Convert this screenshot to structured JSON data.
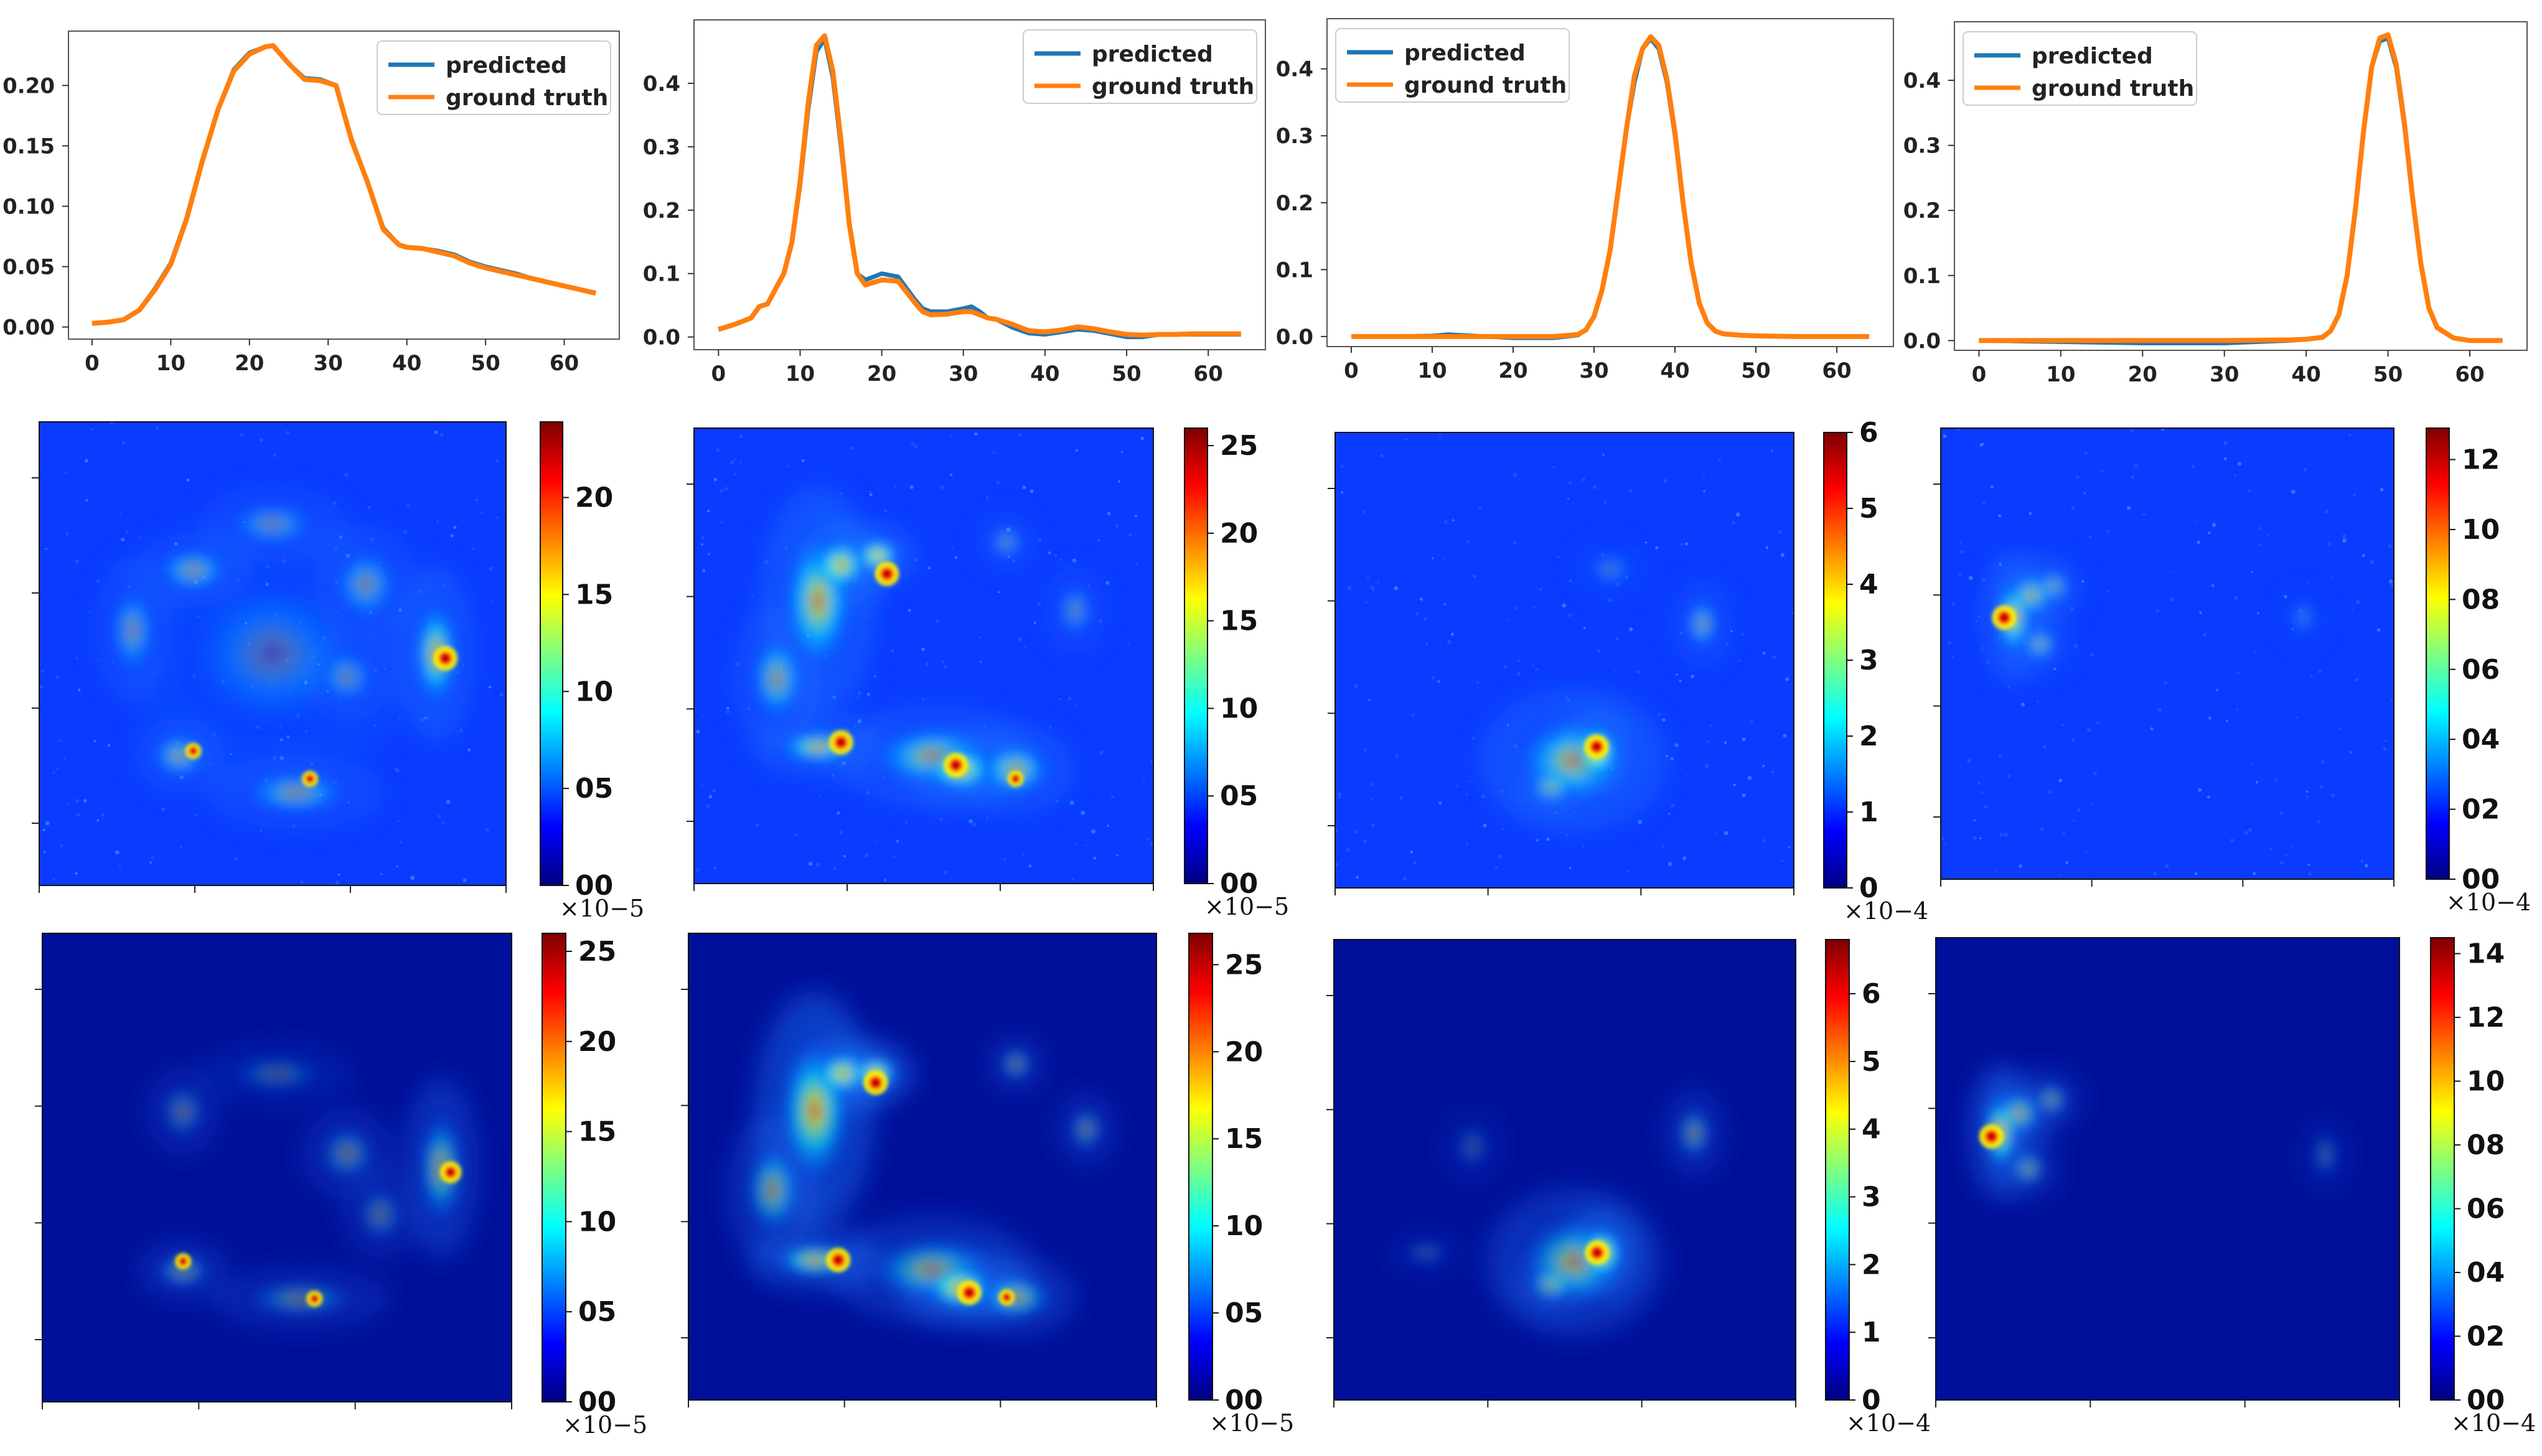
{
  "colors": {
    "predicted": "#1f77b4",
    "ground_truth": "#ff7f0e",
    "jet": [
      "#00007f",
      "#0000ff",
      "#007fff",
      "#00ffff",
      "#7fff7f",
      "#ffff00",
      "#ff7f00",
      "#ff0000",
      "#7f0000"
    ]
  },
  "chart_data": [
    {
      "type": "line",
      "x_ticks": [
        "0",
        "10",
        "20",
        "30",
        "40",
        "50",
        "60"
      ],
      "y_ticks": [
        "0.00",
        "0.05",
        "0.10",
        "0.15",
        "0.20"
      ],
      "xlim": [
        -3,
        67
      ],
      "ylim": [
        -0.01,
        0.245
      ],
      "legend": [
        "predicted",
        "ground truth"
      ],
      "legend_position": "top-right",
      "series": [
        {
          "name": "predicted",
          "x": [
            0,
            2,
            4,
            6,
            8,
            10,
            12,
            14,
            16,
            18,
            20,
            22,
            23,
            25,
            27,
            29,
            31,
            33,
            35,
            37,
            39,
            40,
            42,
            44,
            46,
            48,
            50,
            52,
            54,
            56,
            58,
            60,
            62,
            64
          ],
          "y": [
            0.003,
            0.004,
            0.006,
            0.014,
            0.032,
            0.053,
            0.09,
            0.138,
            0.18,
            0.213,
            0.227,
            0.232,
            0.233,
            0.218,
            0.206,
            0.205,
            0.2,
            0.155,
            0.12,
            0.082,
            0.068,
            0.066,
            0.065,
            0.063,
            0.06,
            0.054,
            0.05,
            0.047,
            0.044,
            0.04,
            0.037,
            0.034,
            0.031,
            0.028
          ]
        },
        {
          "name": "ground truth",
          "x": [
            0,
            2,
            4,
            6,
            8,
            10,
            12,
            14,
            16,
            18,
            20,
            22,
            23,
            25,
            27,
            29,
            31,
            33,
            35,
            37,
            39,
            40,
            42,
            44,
            46,
            48,
            50,
            52,
            54,
            56,
            58,
            60,
            62,
            64
          ],
          "y": [
            0.003,
            0.004,
            0.006,
            0.014,
            0.031,
            0.052,
            0.089,
            0.137,
            0.18,
            0.212,
            0.226,
            0.232,
            0.233,
            0.218,
            0.205,
            0.204,
            0.2,
            0.154,
            0.12,
            0.081,
            0.068,
            0.066,
            0.065,
            0.062,
            0.059,
            0.053,
            0.049,
            0.046,
            0.043,
            0.04,
            0.037,
            0.034,
            0.031,
            0.028
          ]
        }
      ]
    },
    {
      "type": "line",
      "x_ticks": [
        "0",
        "10",
        "20",
        "30",
        "40",
        "50",
        "60"
      ],
      "y_ticks": [
        "0.0",
        "0.1",
        "0.2",
        "0.3",
        "0.4"
      ],
      "xlim": [
        -3,
        67
      ],
      "ylim": [
        -0.02,
        0.5
      ],
      "legend": [
        "predicted",
        "ground truth"
      ],
      "legend_position": "top-right",
      "series": [
        {
          "name": "predicted",
          "x": [
            0,
            2,
            4,
            5,
            6,
            8,
            9,
            10,
            11,
            12,
            13,
            14,
            15,
            16,
            17,
            18,
            20,
            22,
            24,
            25,
            26,
            28,
            30,
            31,
            32,
            33,
            34,
            36,
            38,
            40,
            42,
            44,
            46,
            48,
            50,
            52,
            54,
            56,
            58,
            60,
            62,
            64
          ],
          "y": [
            0.012,
            0.02,
            0.03,
            0.048,
            0.052,
            0.1,
            0.15,
            0.24,
            0.36,
            0.45,
            0.47,
            0.41,
            0.3,
            0.18,
            0.1,
            0.09,
            0.1,
            0.095,
            0.06,
            0.045,
            0.04,
            0.04,
            0.045,
            0.048,
            0.04,
            0.03,
            0.028,
            0.015,
            0.006,
            0.004,
            0.008,
            0.012,
            0.01,
            0.005,
            0.0,
            0.0,
            0.004,
            0.004,
            0.004,
            0.004,
            0.004,
            0.004
          ]
        },
        {
          "name": "ground truth",
          "x": [
            0,
            2,
            4,
            5,
            6,
            8,
            9,
            10,
            11,
            12,
            13,
            14,
            15,
            16,
            17,
            18,
            20,
            22,
            24,
            25,
            26,
            28,
            30,
            31,
            32,
            33,
            34,
            36,
            38,
            40,
            42,
            44,
            46,
            48,
            50,
            52,
            54,
            56,
            58,
            60,
            62,
            64
          ],
          "y": [
            0.012,
            0.02,
            0.03,
            0.048,
            0.052,
            0.1,
            0.15,
            0.245,
            0.37,
            0.46,
            0.475,
            0.42,
            0.31,
            0.18,
            0.1,
            0.082,
            0.09,
            0.088,
            0.055,
            0.04,
            0.035,
            0.036,
            0.04,
            0.04,
            0.035,
            0.03,
            0.028,
            0.02,
            0.01,
            0.008,
            0.011,
            0.016,
            0.013,
            0.008,
            0.004,
            0.003,
            0.004,
            0.004,
            0.005,
            0.005,
            0.005,
            0.005
          ]
        }
      ]
    },
    {
      "type": "line",
      "x_ticks": [
        "0",
        "10",
        "20",
        "30",
        "40",
        "50",
        "60"
      ],
      "y_ticks": [
        "0.0",
        "0.1",
        "0.2",
        "0.3",
        "0.4"
      ],
      "xlim": [
        -3,
        67
      ],
      "ylim": [
        -0.015,
        0.475
      ],
      "legend": [
        "predicted",
        "ground truth"
      ],
      "legend_position": "top-left",
      "series": [
        {
          "name": "predicted",
          "x": [
            0,
            5,
            10,
            12,
            15,
            20,
            25,
            28,
            29,
            30,
            31,
            32,
            33,
            34,
            35,
            36,
            37,
            38,
            39,
            40,
            41,
            42,
            43,
            44,
            45,
            46,
            48,
            50,
            55,
            60,
            64
          ],
          "y": [
            0.0,
            0.0,
            0.001,
            0.003,
            0.001,
            -0.002,
            -0.002,
            0.002,
            0.01,
            0.03,
            0.07,
            0.13,
            0.22,
            0.31,
            0.38,
            0.43,
            0.445,
            0.43,
            0.38,
            0.3,
            0.2,
            0.11,
            0.05,
            0.02,
            0.008,
            0.004,
            0.002,
            0.001,
            0.0,
            0.0,
            0.0
          ]
        },
        {
          "name": "ground truth",
          "x": [
            0,
            5,
            10,
            12,
            15,
            20,
            25,
            28,
            29,
            30,
            31,
            32,
            33,
            34,
            35,
            36,
            37,
            38,
            39,
            40,
            41,
            42,
            43,
            44,
            45,
            46,
            48,
            50,
            55,
            60,
            64
          ],
          "y": [
            0.0,
            0.0,
            0.0,
            0.0,
            0.0,
            0.0,
            0.0,
            0.003,
            0.01,
            0.03,
            0.07,
            0.13,
            0.22,
            0.31,
            0.39,
            0.43,
            0.448,
            0.435,
            0.385,
            0.305,
            0.2,
            0.11,
            0.05,
            0.02,
            0.008,
            0.004,
            0.002,
            0.001,
            0.0,
            0.0,
            0.0
          ]
        }
      ]
    },
    {
      "type": "line",
      "x_ticks": [
        "0",
        "10",
        "20",
        "30",
        "40",
        "50",
        "60"
      ],
      "y_ticks": [
        "0.0",
        "0.1",
        "0.2",
        "0.3",
        "0.4"
      ],
      "xlim": [
        -3,
        67
      ],
      "ylim": [
        -0.015,
        0.49
      ],
      "legend": [
        "predicted",
        "ground truth"
      ],
      "legend_position": "top-left",
      "series": [
        {
          "name": "predicted",
          "x": [
            0,
            10,
            20,
            30,
            38,
            40,
            42,
            43,
            44,
            45,
            46,
            47,
            48,
            49,
            50,
            51,
            52,
            53,
            54,
            55,
            56,
            58,
            60,
            64
          ],
          "y": [
            0.0,
            -0.002,
            -0.004,
            -0.004,
            0.0,
            0.002,
            0.005,
            0.015,
            0.04,
            0.1,
            0.2,
            0.32,
            0.42,
            0.46,
            0.465,
            0.42,
            0.33,
            0.22,
            0.12,
            0.05,
            0.02,
            0.004,
            0.0,
            0.0
          ]
        },
        {
          "name": "ground truth",
          "x": [
            0,
            10,
            20,
            30,
            38,
            40,
            42,
            43,
            44,
            45,
            46,
            47,
            48,
            49,
            50,
            51,
            52,
            53,
            54,
            55,
            56,
            58,
            60,
            64
          ],
          "y": [
            0.0,
            0.0,
            0.0,
            0.0,
            0.001,
            0.002,
            0.005,
            0.015,
            0.04,
            0.1,
            0.2,
            0.32,
            0.42,
            0.465,
            0.47,
            0.425,
            0.335,
            0.22,
            0.12,
            0.05,
            0.02,
            0.004,
            0.0,
            0.0
          ]
        }
      ]
    },
    {
      "type": "heatmap",
      "row": "predicted",
      "colorbar_ticks": [
        "00",
        "05",
        "10",
        "15",
        "20"
      ],
      "colorbar_max": 23.9,
      "multiplier": "×10−5"
    },
    {
      "type": "heatmap",
      "row": "predicted",
      "colorbar_ticks": [
        "00",
        "05",
        "10",
        "15",
        "20",
        "25"
      ],
      "colorbar_max": 26.0,
      "multiplier": "×10−5"
    },
    {
      "type": "heatmap",
      "row": "predicted",
      "colorbar_ticks": [
        "0",
        "1",
        "2",
        "3",
        "4",
        "5",
        "6"
      ],
      "colorbar_max": 6.0,
      "multiplier": "×10−4"
    },
    {
      "type": "heatmap",
      "row": "predicted",
      "colorbar_ticks": [
        "00",
        "02",
        "04",
        "06",
        "08",
        "10",
        "12"
      ],
      "colorbar_max": 12.9,
      "multiplier": "×10−4"
    },
    {
      "type": "heatmap",
      "row": "ground truth",
      "colorbar_ticks": [
        "00",
        "05",
        "10",
        "15",
        "20",
        "25"
      ],
      "colorbar_max": 26.0,
      "multiplier": "×10−5"
    },
    {
      "type": "heatmap",
      "row": "ground truth",
      "colorbar_ticks": [
        "00",
        "05",
        "10",
        "15",
        "20",
        "25"
      ],
      "colorbar_max": 26.8,
      "multiplier": "×10−5"
    },
    {
      "type": "heatmap",
      "row": "ground truth",
      "colorbar_ticks": [
        "0",
        "1",
        "2",
        "3",
        "4",
        "5",
        "6"
      ],
      "colorbar_max": 6.8,
      "multiplier": "×10−4"
    },
    {
      "type": "heatmap",
      "row": "ground truth",
      "colorbar_ticks": [
        "00",
        "02",
        "04",
        "06",
        "08",
        "10",
        "12",
        "14"
      ],
      "colorbar_max": 14.5,
      "multiplier": "×10−4"
    }
  ]
}
